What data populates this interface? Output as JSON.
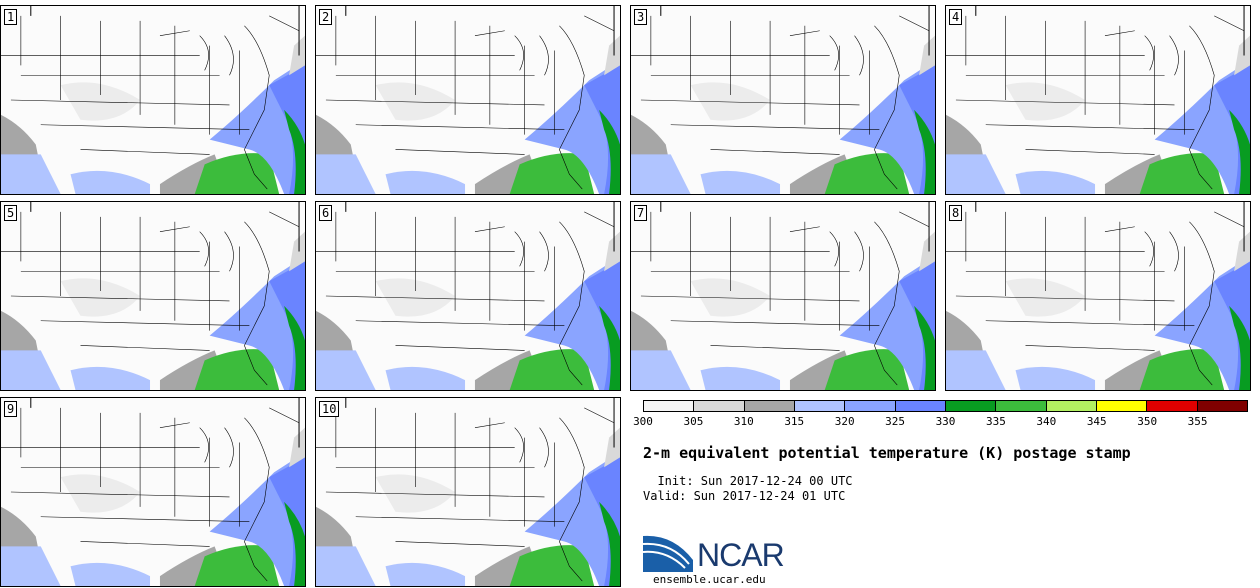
{
  "stamps": [
    {
      "label": "1"
    },
    {
      "label": "2"
    },
    {
      "label": "3"
    },
    {
      "label": "4"
    },
    {
      "label": "5"
    },
    {
      "label": "6"
    },
    {
      "label": "7"
    },
    {
      "label": "8"
    },
    {
      "label": "9"
    },
    {
      "label": "10"
    }
  ],
  "colorbar": {
    "levels": [
      "300",
      "305",
      "310",
      "315",
      "320",
      "325",
      "330",
      "335",
      "340",
      "345",
      "350",
      "355"
    ],
    "colors": [
      "#f5f5f5",
      "#d9d9d9",
      "#a6a6a6",
      "#b0c4ff",
      "#8aa4ff",
      "#6a84ff",
      "#089c21",
      "#3cbc3c",
      "#b2f061",
      "#ffff00",
      "#e00000",
      "#800000"
    ]
  },
  "header": {
    "title": "2-m equivalent potential temperature (K) postage stamp",
    "init": "  Init: Sun 2017-12-24 00 UTC",
    "valid": "Valid: Sun 2017-12-24 01 UTC"
  },
  "branding": {
    "logo_text": "NCAR",
    "url": "ensemble.ucar.edu",
    "logo_color": "#1a5fa8"
  }
}
